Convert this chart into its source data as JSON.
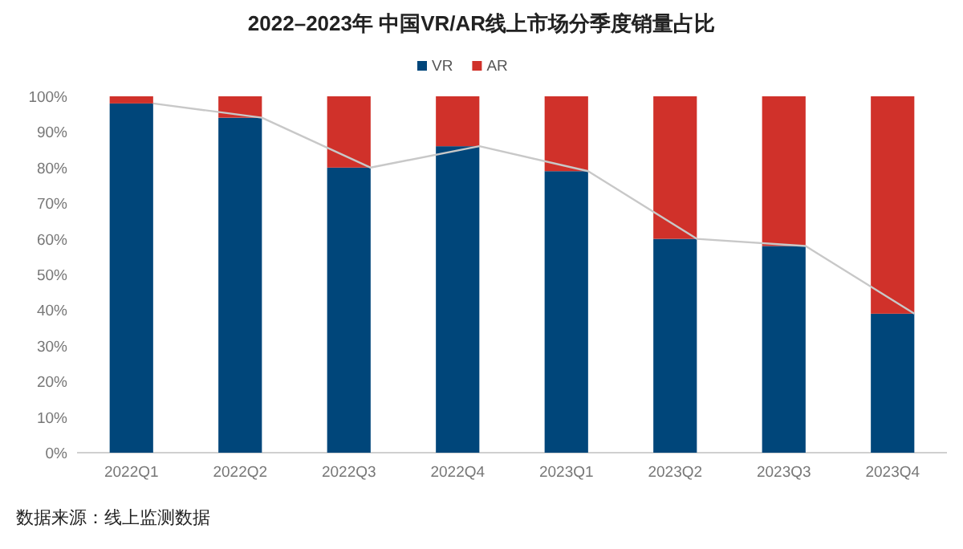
{
  "chart_data": {
    "type": "bar",
    "title": "2022–2023年 中国VR/AR线上市场分季度销量占比",
    "stacked": true,
    "categories": [
      "2022Q1",
      "2022Q2",
      "2022Q3",
      "2022Q4",
      "2023Q1",
      "2023Q2",
      "2023Q3",
      "2023Q4"
    ],
    "series": [
      {
        "name": "VR",
        "color": "#00467a",
        "values": [
          98,
          94,
          80,
          86,
          79,
          60,
          58,
          39
        ]
      },
      {
        "name": "AR",
        "color": "#d0312a",
        "values": [
          2,
          6,
          20,
          14,
          21,
          40,
          42,
          61
        ]
      },
      {
        "type": "line",
        "color": "#c8c8c8",
        "values": [
          98,
          94,
          80,
          86,
          79,
          60,
          58,
          39
        ]
      }
    ],
    "ylim": [
      0,
      100
    ],
    "yticks": [
      {
        "value": 0,
        "label": "0%"
      },
      {
        "value": 10,
        "label": "10%"
      },
      {
        "value": 20,
        "label": "20%"
      },
      {
        "value": 30,
        "label": "30%"
      },
      {
        "value": 40,
        "label": "40%"
      },
      {
        "value": 50,
        "label": "50%"
      },
      {
        "value": 60,
        "label": "60%"
      },
      {
        "value": 70,
        "label": "70%"
      },
      {
        "value": 80,
        "label": "80%"
      },
      {
        "value": 90,
        "label": "90%"
      },
      {
        "value": 100,
        "label": "100%"
      }
    ],
    "legend": "top",
    "grid": false,
    "annotations": [
      "数据来源：线上监测数据"
    ]
  }
}
